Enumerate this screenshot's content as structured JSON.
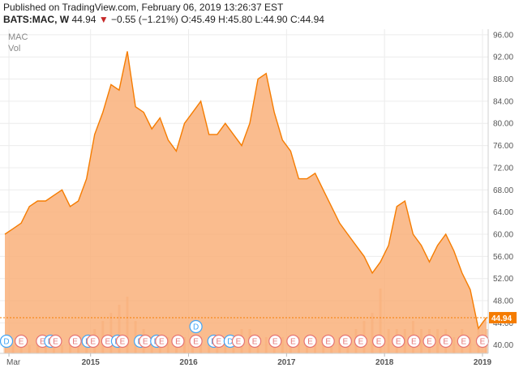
{
  "header": {
    "published": "Published on TradingView.com, February 06, 2019 13:26:37 EST",
    "symbol": "BATS:MAC, W",
    "last": "44.94",
    "change": "−0.55 (−1.21%)",
    "o_label": "O:",
    "o_value": "45.49",
    "h_label": "H:",
    "h_value": "45.80",
    "l_label": "L:",
    "l_value": "44.90",
    "c_label": "C:",
    "c_value": "44.94"
  },
  "overlay": {
    "symbol": "MAC",
    "vol": "Vol"
  },
  "chart_data": {
    "type": "area",
    "ylim": [
      38.5,
      97
    ],
    "y_ticks": [
      40,
      44,
      48,
      52,
      56,
      60,
      64,
      68,
      72,
      76,
      80,
      84,
      88,
      92,
      96
    ],
    "y_tick_labels": [
      "40.00",
      "44.00",
      "48.00",
      "52.00",
      "56.00",
      "60.00",
      "64.00",
      "68.00",
      "72.00",
      "76.00",
      "80.00",
      "84.00",
      "88.00",
      "92.00",
      "96.00"
    ],
    "last_price": 44.94,
    "last_price_label": "44.94",
    "x_ticks": [
      {
        "label": "Mar",
        "t": 0.5
      },
      {
        "label": "2015",
        "t": 10.5
      },
      {
        "label": "2016",
        "t": 22.5
      },
      {
        "label": "2017",
        "t": 34.5
      },
      {
        "label": "2018",
        "t": 46.5
      },
      {
        "label": "2019",
        "t": 58.5
      }
    ],
    "series": [
      {
        "values": [
          60,
          61,
          62,
          65,
          66,
          66,
          67,
          68,
          65,
          66,
          70,
          78,
          82,
          87,
          86,
          93,
          83,
          82,
          79,
          81,
          77,
          75,
          80,
          82,
          84,
          78,
          78,
          80,
          78,
          76,
          80,
          88,
          89,
          82,
          77,
          75,
          70,
          70,
          71,
          68,
          65,
          62,
          60,
          58,
          56,
          53,
          55,
          58,
          65,
          66,
          60,
          58,
          55,
          58,
          60,
          57,
          53,
          50,
          43,
          45
        ]
      }
    ],
    "volume": [
      1,
      1,
      1,
      1,
      1,
      1,
      1,
      1,
      1,
      1,
      2,
      3,
      4,
      5,
      6,
      7,
      4,
      3,
      2,
      2,
      2,
      2,
      2,
      2,
      2,
      2,
      2,
      2,
      2,
      3,
      3,
      2,
      2,
      2,
      2,
      2,
      2,
      2,
      2,
      2,
      2,
      2,
      2,
      3,
      4,
      5,
      8,
      3,
      3,
      3,
      4,
      3,
      3,
      3,
      3,
      2,
      3,
      2,
      3,
      3
    ],
    "events": [
      {
        "label": "D",
        "t": 0.2
      },
      {
        "label": "E",
        "t": 2
      },
      {
        "label": "E",
        "t": 4.6
      },
      {
        "label": "D",
        "t": 5.6
      },
      {
        "label": "E",
        "t": 6.2
      },
      {
        "label": "E",
        "t": 8.6
      },
      {
        "label": "D",
        "t": 10.2
      },
      {
        "label": "E",
        "t": 10.8
      },
      {
        "label": "E",
        "t": 12.6
      },
      {
        "label": "D",
        "t": 13.8
      },
      {
        "label": "E",
        "t": 14.4
      },
      {
        "label": "D",
        "t": 16.6
      },
      {
        "label": "E",
        "t": 17.2
      },
      {
        "label": "D",
        "t": 18.6
      },
      {
        "label": "E",
        "t": 19.2
      },
      {
        "label": "E",
        "t": 21.2
      },
      {
        "label": "E",
        "t": 23.4
      },
      {
        "label": "D",
        "t": 25.6
      },
      {
        "label": "E",
        "t": 26.2
      },
      {
        "label": "D",
        "t": 27.6
      },
      {
        "label": "E",
        "t": 28.6
      },
      {
        "label": "E",
        "t": 30.6
      },
      {
        "label": "E",
        "t": 33.1
      },
      {
        "label": "E",
        "t": 35.3
      },
      {
        "label": "E",
        "t": 37.4
      },
      {
        "label": "E",
        "t": 39.6
      },
      {
        "label": "E",
        "t": 41.7
      },
      {
        "label": "E",
        "t": 43.6
      },
      {
        "label": "E",
        "t": 45.8
      },
      {
        "label": "E",
        "t": 48.2
      },
      {
        "label": "E",
        "t": 50.1
      },
      {
        "label": "E",
        "t": 52.0
      },
      {
        "label": "E",
        "t": 54.0
      },
      {
        "label": "E",
        "t": 56.2
      },
      {
        "label": "E",
        "t": 58.5
      }
    ],
    "raised_dividend": {
      "label": "D",
      "t": 23.4
    }
  },
  "colors": {
    "line": "#f57c00",
    "fill": "#f9b07a",
    "volume": "#e9a06a",
    "grid": "#ececec",
    "event": "#e57373",
    "dividend": "#42a5f5",
    "badge": "#f57c00"
  }
}
